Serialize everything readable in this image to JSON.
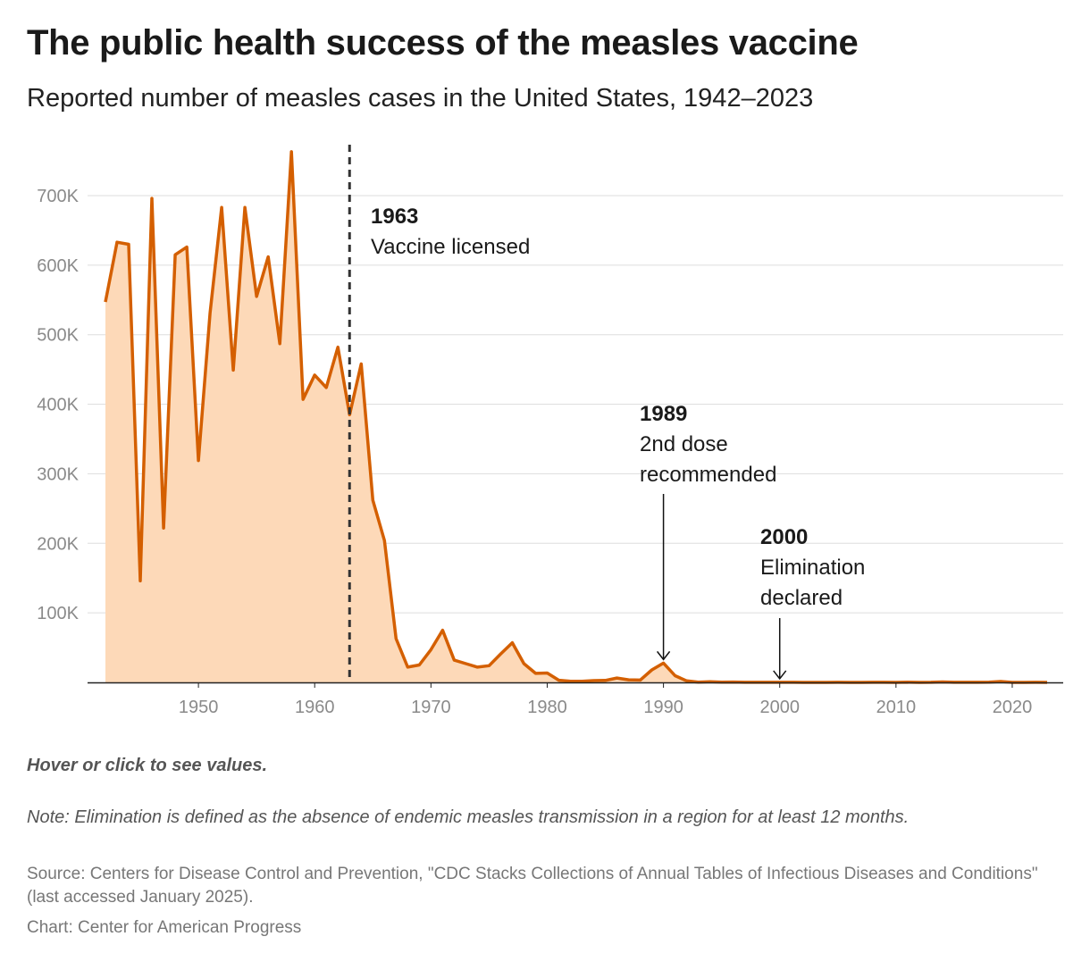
{
  "header": {
    "title": "The public health success of the measles vaccine",
    "subtitle": "Reported number of measles cases in the United States, 1942–2023"
  },
  "footer": {
    "hint": "Hover or click to see values.",
    "note": "Note: Elimination is defined as the absence of endemic measles transmission in a region for at least 12 months.",
    "source": "Source: Centers for Disease Control and Prevention, \"CDC Stacks Collections of Annual Tables of Infectious Diseases and Conditions\" (last accessed January 2025).",
    "credit": "Chart: Center for American Progress"
  },
  "colors": {
    "line": "#d45f00",
    "area": "#fdd9b8",
    "grid": "#dddddd",
    "axis": "#222222",
    "marker": "#333333"
  },
  "chart_data": {
    "type": "area",
    "x": [
      1942,
      1943,
      1944,
      1945,
      1946,
      1947,
      1948,
      1949,
      1950,
      1951,
      1952,
      1953,
      1954,
      1955,
      1956,
      1957,
      1958,
      1959,
      1960,
      1961,
      1962,
      1963,
      1964,
      1965,
      1966,
      1967,
      1968,
      1969,
      1970,
      1971,
      1972,
      1973,
      1974,
      1975,
      1976,
      1977,
      1978,
      1979,
      1980,
      1981,
      1982,
      1983,
      1984,
      1985,
      1986,
      1987,
      1988,
      1989,
      1990,
      1991,
      1992,
      1993,
      1994,
      1995,
      1996,
      1997,
      1998,
      1999,
      2000,
      2001,
      2002,
      2003,
      2004,
      2005,
      2006,
      2007,
      2008,
      2009,
      2010,
      2011,
      2012,
      2013,
      2014,
      2015,
      2016,
      2017,
      2018,
      2019,
      2020,
      2021,
      2022,
      2023
    ],
    "series": [
      {
        "values": [
          547000,
          633000,
          630000,
          146000,
          696000,
          222000,
          615000,
          626000,
          319000,
          531000,
          683000,
          449000,
          683000,
          555000,
          612000,
          487000,
          763000,
          407000,
          442000,
          424000,
          482000,
          385000,
          458000,
          262000,
          204000,
          63000,
          22000,
          25000,
          47000,
          75000,
          32000,
          27000,
          22000,
          24000,
          41000,
          57000,
          27000,
          13000,
          13500,
          3100,
          1700,
          1500,
          2600,
          2800,
          6300,
          3700,
          3400,
          18000,
          27800,
          9600,
          2200,
          312,
          963,
          309,
          508,
          138,
          100,
          100,
          86,
          116,
          44,
          56,
          37,
          66,
          55,
          43,
          140,
          71,
          63,
          220,
          55,
          187,
          667,
          188,
          86,
          120,
          375,
          1282,
          13,
          49,
          121,
          59
        ]
      }
    ],
    "xlim": [
      1942,
      2023
    ],
    "ylim": [
      0,
      700000
    ],
    "y_ticks": [
      {
        "value": 100000,
        "label": "100K"
      },
      {
        "value": 200000,
        "label": "200K"
      },
      {
        "value": 300000,
        "label": "300K"
      },
      {
        "value": 400000,
        "label": "400K"
      },
      {
        "value": 500000,
        "label": "500K"
      },
      {
        "value": 600000,
        "label": "600K"
      },
      {
        "value": 700000,
        "label": "700K"
      }
    ],
    "x_ticks": [
      "1950",
      "1960",
      "1970",
      "1980",
      "1990",
      "2000",
      "2010",
      "2020"
    ],
    "grid": true,
    "annotations": [
      {
        "year": 1963,
        "label": "1963",
        "lines": [
          "Vaccine licensed"
        ],
        "style": "dashed-line"
      },
      {
        "year": 1989,
        "label": "1989",
        "lines": [
          "2nd dose",
          "recommended"
        ],
        "style": "arrow",
        "target_year": 1990
      },
      {
        "year": 2000,
        "label": "2000",
        "lines": [
          "Elimination",
          "declared"
        ],
        "style": "arrow",
        "target_year": 2000
      }
    ]
  }
}
